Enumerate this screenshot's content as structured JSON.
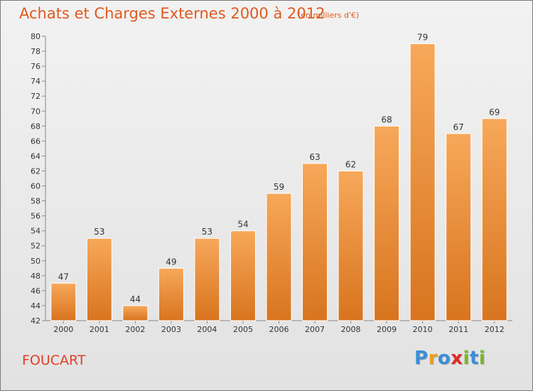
{
  "header": {
    "title": "Achats et Charges Externes 2000 à 2012",
    "subtitle": "(en milliers d'€)"
  },
  "footer": {
    "commune": "FOUCART",
    "logo_text": "Proxiti",
    "logo_colors": [
      "#3a8fd8",
      "#e8a020",
      "#3a8fd8",
      "#e02a2a",
      "#7ab828",
      "#3a8fd8",
      "#7ab828"
    ]
  },
  "chart_data": {
    "type": "bar",
    "title": "Achats et Charges Externes 2000 à 2012",
    "subtitle": "(en milliers d'€)",
    "xlabel": "",
    "ylabel": "",
    "categories": [
      "2000",
      "2001",
      "2002",
      "2003",
      "2004",
      "2005",
      "2006",
      "2007",
      "2008",
      "2009",
      "2010",
      "2011",
      "2012"
    ],
    "values": [
      47,
      53,
      44,
      49,
      53,
      54,
      59,
      63,
      62,
      68,
      79,
      67,
      69
    ],
    "ylim": [
      42,
      80
    ],
    "yticks": [
      42,
      44,
      46,
      48,
      50,
      52,
      54,
      56,
      58,
      60,
      62,
      64,
      66,
      68,
      70,
      72,
      74,
      76,
      78,
      80
    ],
    "grid": false,
    "bar_color_top": "#f7a85a",
    "bar_color_bottom": "#d8741e",
    "axis_color": "#888888"
  }
}
